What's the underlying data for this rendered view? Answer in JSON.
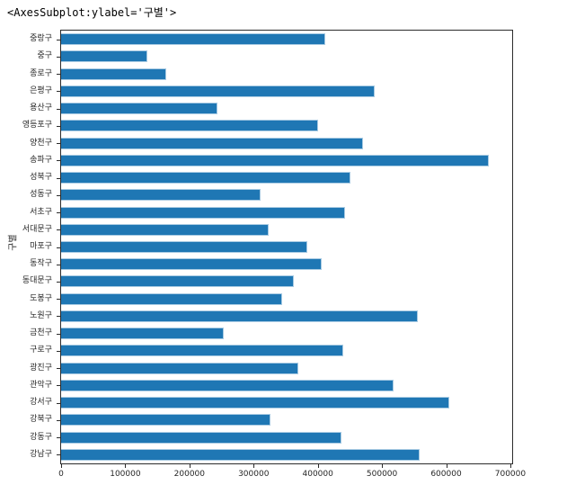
{
  "repr_text": "<AxesSubplot:ylabel='구별'>",
  "chart_data": {
    "type": "bar",
    "orientation": "horizontal",
    "title": "",
    "xlabel": "",
    "ylabel": "구별",
    "grid": false,
    "legend": null,
    "bar_color": "#1f77b4",
    "bar_edge_color": "#a9cbe3",
    "xlim": [
      0,
      702900
    ],
    "x_tick_values": [
      0,
      100000,
      200000,
      300000,
      400000,
      500000,
      600000,
      700000
    ],
    "x_tick_labels": [
      "0",
      "100000",
      "200000",
      "300000",
      "400000",
      "500000",
      "600000",
      "700000"
    ],
    "categories_top_to_bottom": [
      "중랑구",
      "중구",
      "종로구",
      "은평구",
      "용산구",
      "영등포구",
      "양천구",
      "송파구",
      "성북구",
      "성동구",
      "서초구",
      "서대문구",
      "마포구",
      "동작구",
      "동대문구",
      "도봉구",
      "노원구",
      "금천구",
      "구로구",
      "광진구",
      "관악구",
      "강서구",
      "강북구",
      "강동구",
      "강남구"
    ],
    "values_top_to_bottom": [
      411000,
      135000,
      164000,
      488000,
      244000,
      400000,
      471000,
      666000,
      451000,
      311000,
      443000,
      324000,
      384000,
      406000,
      363000,
      344000,
      556000,
      253000,
      439000,
      370000,
      518000,
      605000,
      326000,
      437000,
      559000
    ]
  }
}
